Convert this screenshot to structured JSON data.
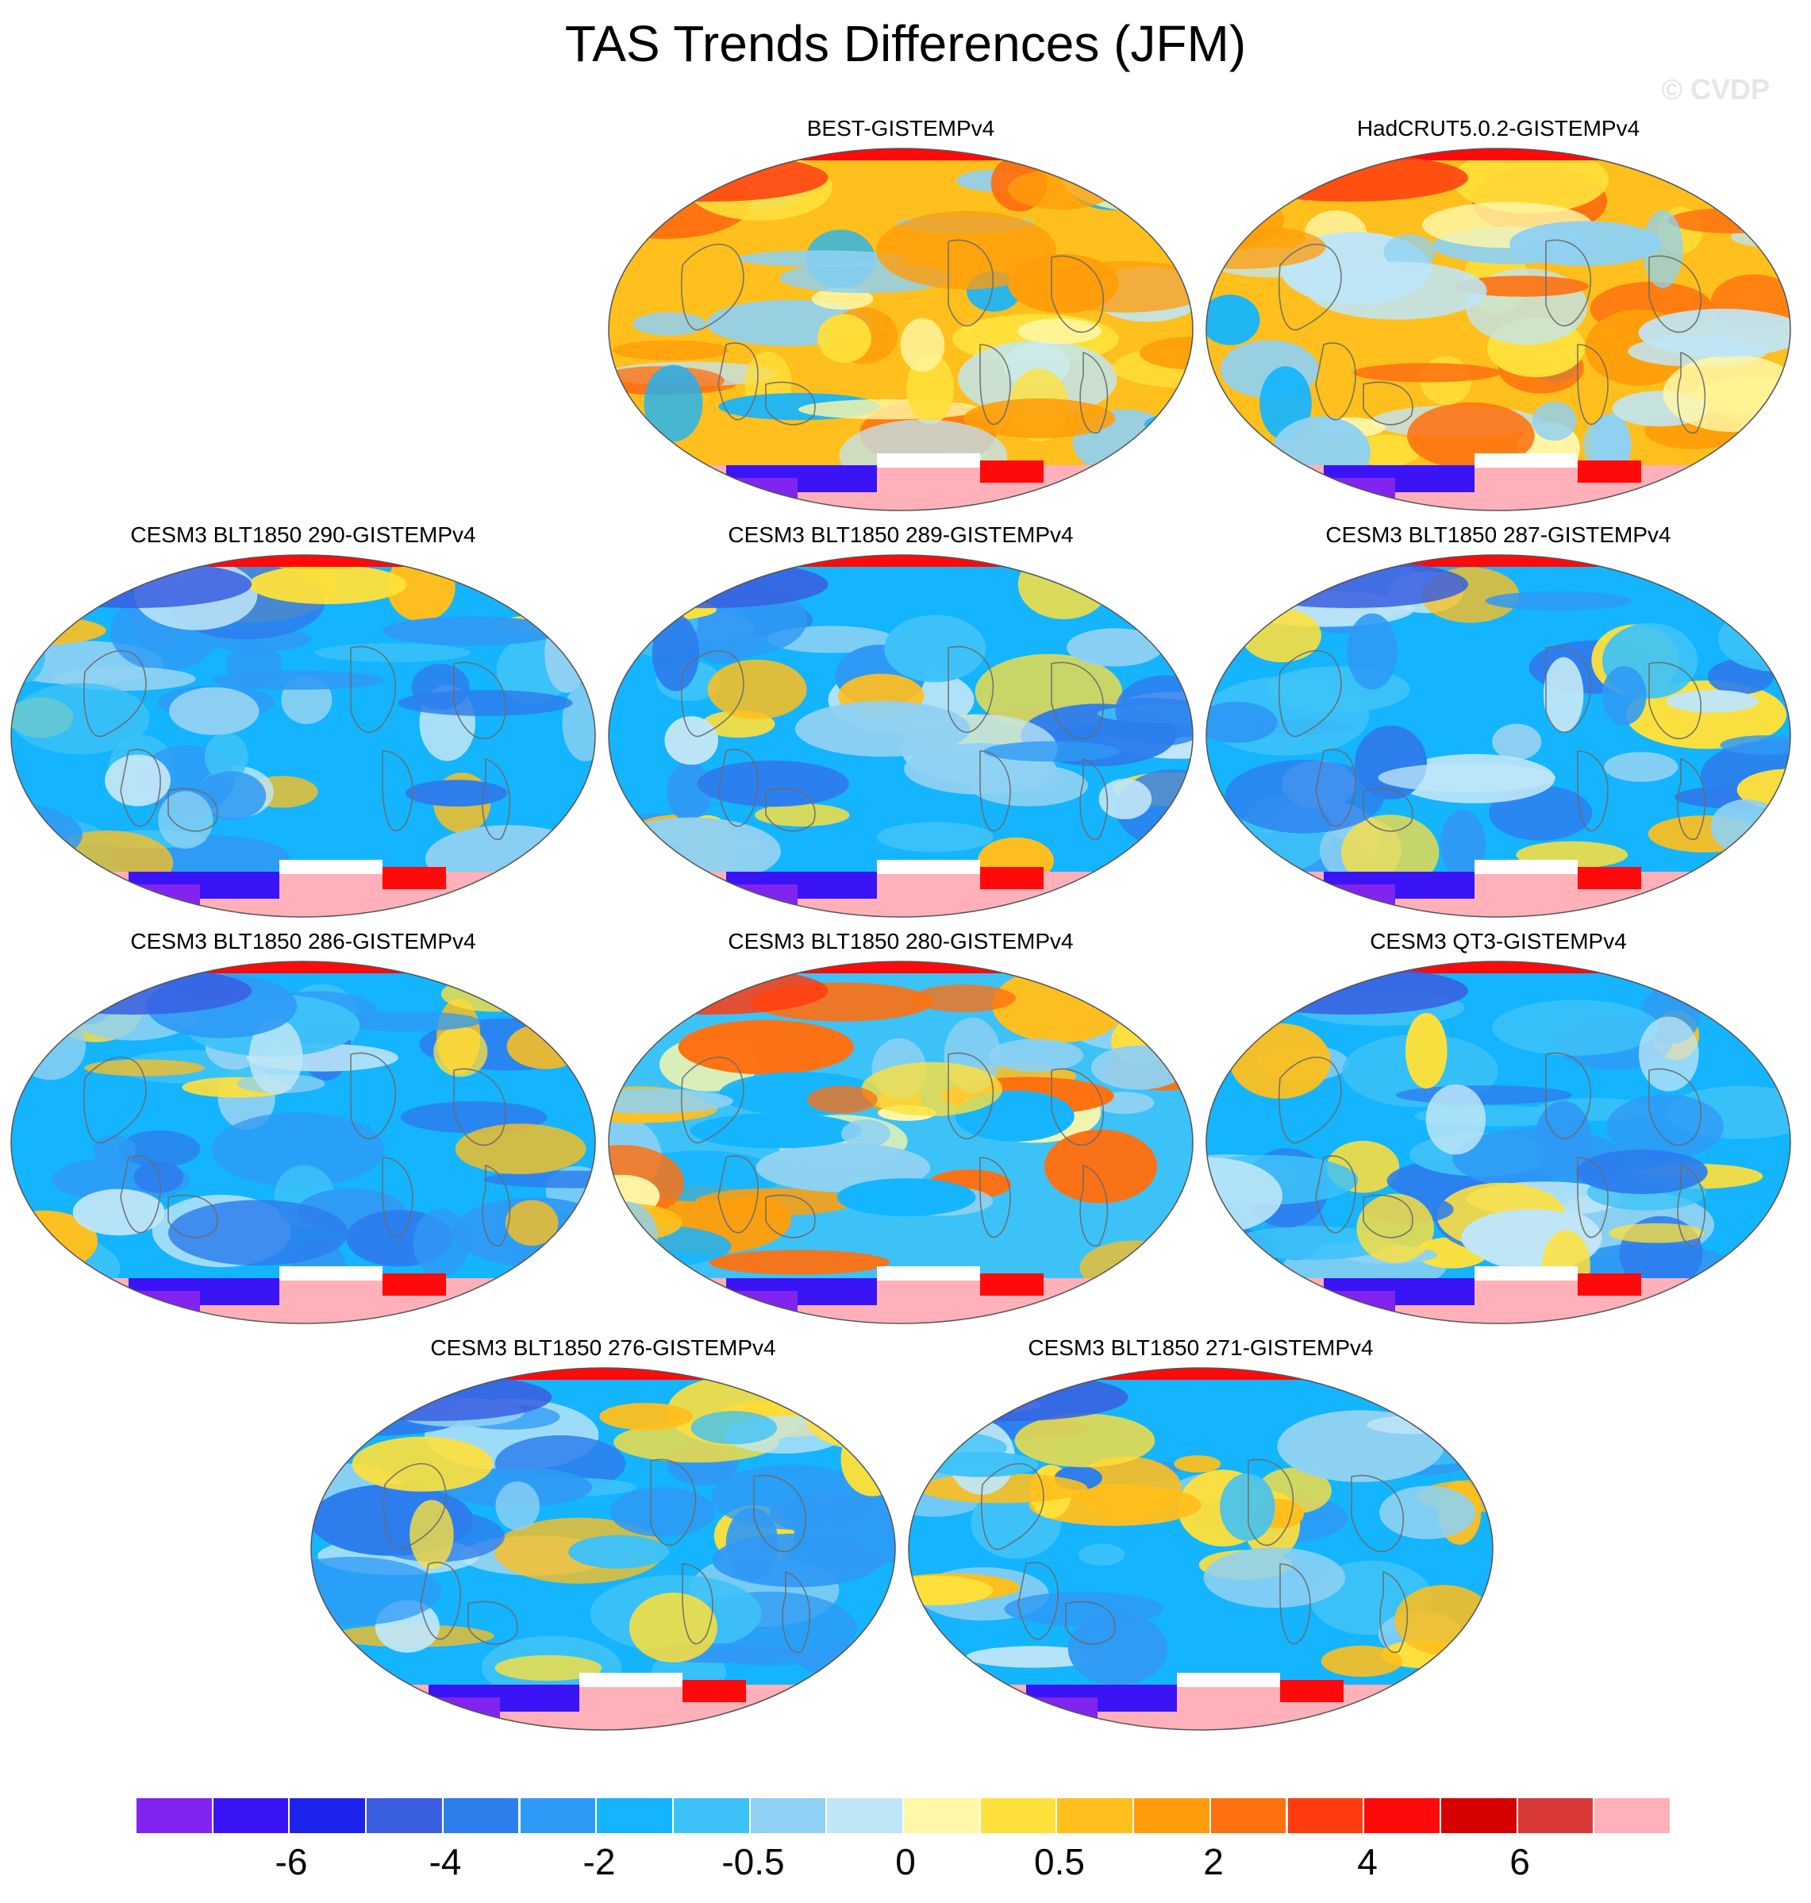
{
  "title": "TAS Trends Differences (JFM)",
  "watermark": "© CVDP",
  "panels": [
    {
      "title": "BEST-GISTEMPv4",
      "palette": "warm"
    },
    {
      "title": "HadCRUT5.0.2-GISTEMPv4",
      "palette": "warm"
    },
    {
      "title": "CESM3 BLT1850 290-GISTEMPv4",
      "palette": "cool"
    },
    {
      "title": "CESM3 BLT1850 289-GISTEMPv4",
      "palette": "cool"
    },
    {
      "title": "CESM3 BLT1850 287-GISTEMPv4",
      "palette": "cool"
    },
    {
      "title": "CESM3 BLT1850 286-GISTEMPv4",
      "palette": "cool"
    },
    {
      "title": "CESM3 BLT1850 280-GISTEMPv4",
      "palette": "mixed"
    },
    {
      "title": "CESM3 QT3-GISTEMPv4",
      "palette": "cool"
    },
    {
      "title": "CESM3 BLT1850 276-GISTEMPv4",
      "palette": "cool"
    },
    {
      "title": "CESM3 BLT1850 271-GISTEMPv4",
      "palette": "cool"
    }
  ],
  "colorbar": {
    "colors": [
      "#8224f0",
      "#3a14f5",
      "#1c24eb",
      "#3a5ee0",
      "#2d7ded",
      "#2f9af5",
      "#14b4ff",
      "#3dc2f8",
      "#8fd1f2",
      "#bfe6f7",
      "#fff8a8",
      "#ffe03a",
      "#ffbf1c",
      "#ff9e0a",
      "#ff7010",
      "#ff3c10",
      "#ff0a0a",
      "#d60000",
      "#d83a3a",
      "#ffb0b8"
    ],
    "labels": [
      "-6",
      "-4",
      "-2",
      "-0.5",
      "0",
      "0.5",
      "2",
      "4",
      "6"
    ]
  },
  "map_icon": "globe-icon"
}
